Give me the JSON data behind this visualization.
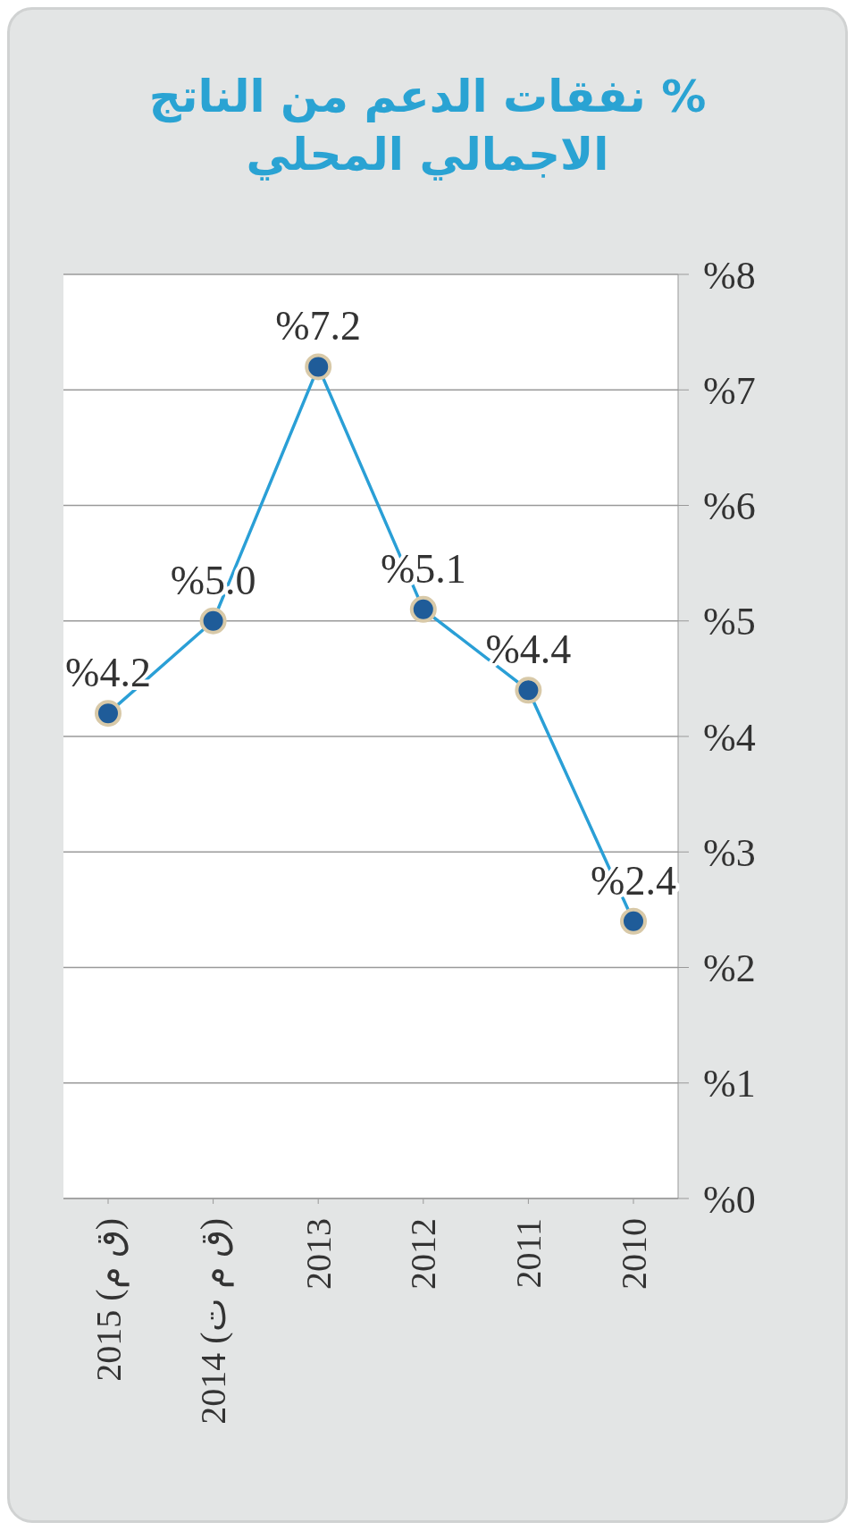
{
  "chart_data": {
    "type": "line",
    "title": "% نفقات الدعم من الناتج الاجمالي المحلي",
    "categories": [
      "2015 (ق م)",
      "2014 (ق م ت)",
      "2013",
      "2012",
      "2011",
      "2010"
    ],
    "series": [
      {
        "color": "#2a9fd6",
        "values": [
          4.2,
          5.0,
          7.2,
          5.1,
          4.4,
          2.4
        ],
        "value_labels": [
          "%4.2",
          "%5.0",
          "%7.2",
          "%5.1",
          "%4.4",
          "%2.4"
        ]
      }
    ],
    "ylim": [
      0,
      8
    ],
    "yticks": [
      {
        "value": 0,
        "label": "%0"
      },
      {
        "value": 1,
        "label": "%1"
      },
      {
        "value": 2,
        "label": "%2"
      },
      {
        "value": 3,
        "label": "%3"
      },
      {
        "value": 4,
        "label": "%4"
      },
      {
        "value": 5,
        "label": "%5"
      },
      {
        "value": 6,
        "label": "%6"
      },
      {
        "value": 7,
        "label": "%7"
      },
      {
        "value": 8,
        "label": "%8"
      }
    ],
    "grid": "y",
    "marker": "circle",
    "line_style": "solid"
  }
}
